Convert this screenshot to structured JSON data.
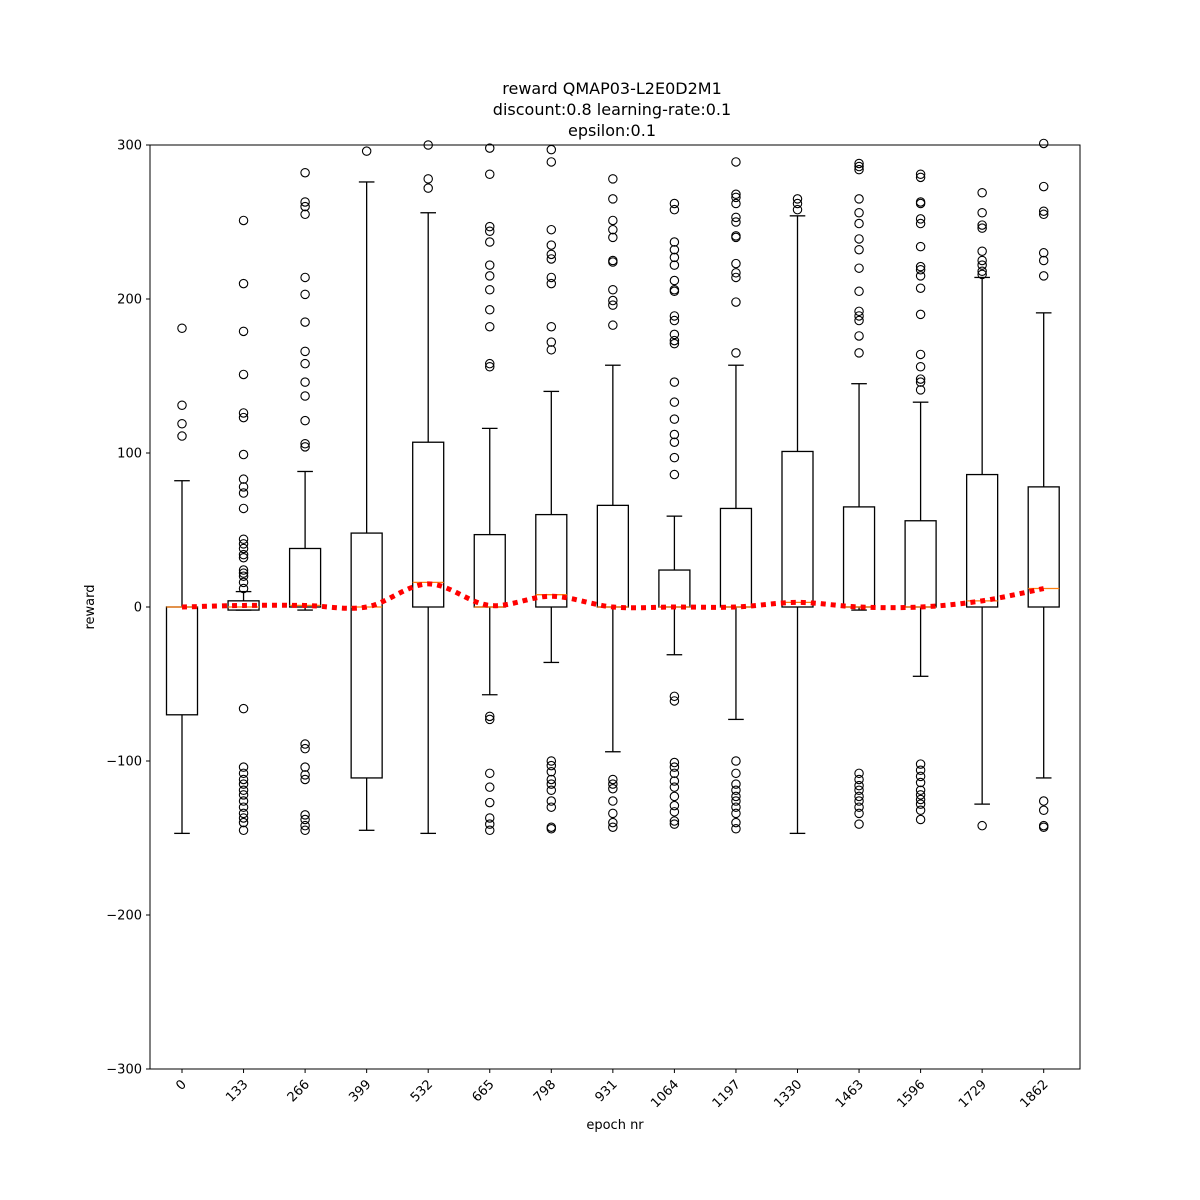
{
  "chart_data": {
    "type": "box",
    "title_lines": [
      "reward QMAP03-L2E0D2M1",
      "discount:0.8 learning-rate:0.1",
      "epsilon:0.1"
    ],
    "xlabel": "epoch nr",
    "ylabel": "reward",
    "ylim": [
      -300,
      300
    ],
    "yticks": [
      -300,
      -200,
      -100,
      0,
      100,
      200,
      300
    ],
    "grid": false,
    "categories": [
      "0",
      "133",
      "266",
      "399",
      "532",
      "665",
      "798",
      "931",
      "1064",
      "1197",
      "1330",
      "1463",
      "1596",
      "1729",
      "1862"
    ],
    "boxes": [
      {
        "whislo": -147,
        "q1": -70,
        "med": 0,
        "q3": 0,
        "whishi": 82,
        "fliers": [
          181,
          131,
          119,
          111
        ]
      },
      {
        "whislo": -2,
        "q1": -2,
        "med": 0,
        "q3": 4,
        "whishi": 10,
        "fliers": [
          251,
          210,
          179,
          151,
          126,
          123,
          99,
          83,
          78,
          74,
          64,
          44,
          41,
          38,
          34,
          32,
          24,
          22,
          20,
          16,
          12,
          -66,
          -104,
          -108,
          -112,
          -115,
          -119,
          -122,
          -126,
          -130,
          -134,
          -137,
          -140,
          -145
        ]
      },
      {
        "whislo": -2,
        "q1": 0,
        "med": 1,
        "q3": 38,
        "whishi": 88,
        "fliers": [
          282,
          263,
          260,
          255,
          214,
          203,
          185,
          166,
          158,
          146,
          137,
          121,
          106,
          104,
          -89,
          -92,
          -104,
          -109,
          -112,
          -135,
          -138,
          -142,
          -145
        ]
      },
      {
        "whislo": -145,
        "q1": -111,
        "med": 0,
        "q3": 48,
        "whishi": 276,
        "fliers": [
          296
        ]
      },
      {
        "whislo": -147,
        "q1": 0,
        "med": 16,
        "q3": 107,
        "whishi": 256,
        "fliers": [
          300,
          278,
          272
        ]
      },
      {
        "whislo": -57,
        "q1": 0,
        "med": 0,
        "q3": 47,
        "whishi": 116,
        "fliers": [
          298,
          281,
          247,
          244,
          237,
          222,
          215,
          206,
          193,
          182,
          158,
          156,
          -71,
          -73,
          -108,
          -117,
          -127,
          -137,
          -141,
          -145
        ]
      },
      {
        "whislo": -36,
        "q1": 0,
        "med": 8,
        "q3": 60,
        "whishi": 140,
        "fliers": [
          297,
          289,
          245,
          235,
          229,
          226,
          214,
          210,
          182,
          172,
          167,
          -100,
          -103,
          -107,
          -112,
          -115,
          -119,
          -126,
          -130,
          -143,
          -144
        ]
      },
      {
        "whislo": -94,
        "q1": 0,
        "med": 0,
        "q3": 66,
        "whishi": 157,
        "fliers": [
          278,
          265,
          251,
          245,
          240,
          225,
          224,
          206,
          199,
          196,
          183,
          -112,
          -115,
          -118,
          -126,
          -134,
          -140,
          -143
        ]
      },
      {
        "whislo": -31,
        "q1": 0,
        "med": 0,
        "q3": 24,
        "whishi": 59,
        "fliers": [
          262,
          258,
          237,
          232,
          227,
          222,
          212,
          206,
          205,
          189,
          186,
          177,
          173,
          171,
          146,
          133,
          122,
          112,
          107,
          97,
          86,
          -58,
          -61,
          -101,
          -104,
          -108,
          -113,
          -117,
          -123,
          -129,
          -133,
          -139,
          -141
        ]
      },
      {
        "whislo": -73,
        "q1": 0,
        "med": 0,
        "q3": 64,
        "whishi": 157,
        "fliers": [
          289,
          268,
          266,
          262,
          253,
          250,
          241,
          240,
          223,
          217,
          214,
          198,
          165,
          -100,
          -108,
          -115,
          -119,
          -123,
          -126,
          -130,
          -134,
          -140,
          -144
        ]
      },
      {
        "whislo": -147,
        "q1": 0,
        "med": 3,
        "q3": 101,
        "whishi": 254,
        "fliers": [
          265,
          262,
          258
        ]
      },
      {
        "whislo": -2,
        "q1": 0,
        "med": 0,
        "q3": 65,
        "whishi": 145,
        "fliers": [
          288,
          286,
          284,
          265,
          256,
          249,
          239,
          232,
          220,
          205,
          192,
          189,
          186,
          176,
          165,
          -108,
          -112,
          -116,
          -119,
          -123,
          -126,
          -130,
          -134,
          -141
        ]
      },
      {
        "whislo": -45,
        "q1": 0,
        "med": 0,
        "q3": 56,
        "whishi": 133,
        "fliers": [
          281,
          279,
          263,
          262,
          252,
          249,
          234,
          221,
          219,
          215,
          207,
          190,
          164,
          156,
          148,
          146,
          141,
          -102,
          -106,
          -110,
          -114,
          -119,
          -122,
          -125,
          -128,
          -132,
          -138
        ]
      },
      {
        "whislo": -128,
        "q1": 0,
        "med": 4,
        "q3": 86,
        "whishi": 214,
        "fliers": [
          269,
          256,
          248,
          246,
          231,
          225,
          222,
          218,
          216,
          -142
        ]
      },
      {
        "whislo": -111,
        "q1": 0,
        "med": 12,
        "q3": 78,
        "whishi": 191,
        "fliers": [
          301,
          273,
          257,
          255,
          230,
          225,
          215,
          -126,
          -132,
          -142,
          -143
        ]
      }
    ],
    "trend_line": {
      "style": "dotted",
      "color": "#ff0000",
      "values": [
        0,
        1,
        1,
        0,
        15,
        1,
        7,
        0,
        0,
        0,
        3,
        0,
        0,
        4,
        12
      ]
    },
    "colors": {
      "box": "#000000",
      "median": "#ff7f0e",
      "trend": "#ff0000",
      "flier": "#000000"
    }
  }
}
